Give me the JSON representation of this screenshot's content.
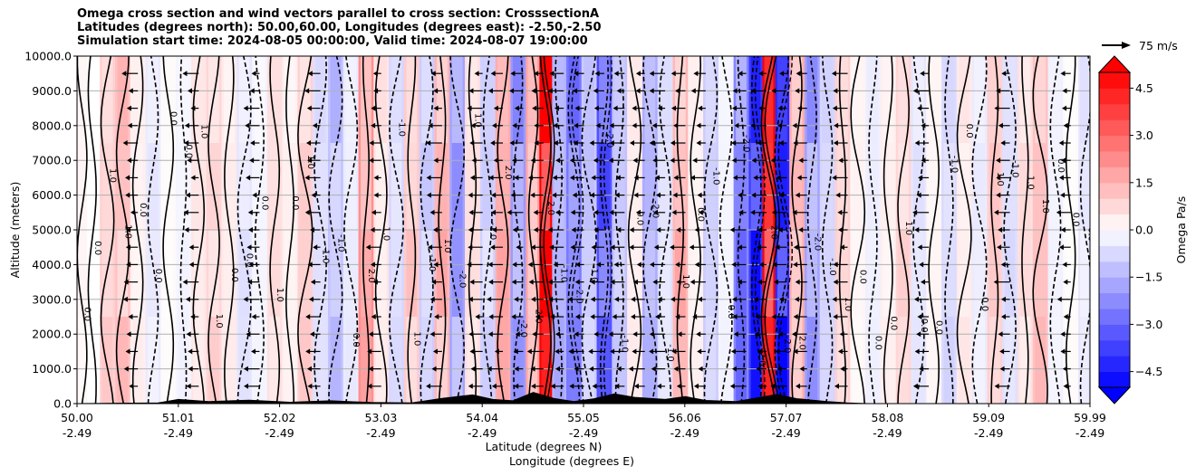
{
  "chart_data": {
    "type": "contour-cross-section",
    "title_lines": [
      "Omega cross section and wind vectors parallel to cross section: CrosssectionA",
      "Latitudes (degrees north): 50.00,60.00, Longitudes (degrees east): -2.50,-2.50",
      "Simulation start time: 2024-08-05 00:00:00, Valid time: 2024-08-07 19:00:00"
    ],
    "ylabel": "Altitude (meters)",
    "xlabel_lat": "Latitude (degrees N)",
    "xlabel_lon": "Longitude (degrees E)",
    "ylim": [
      0,
      10000
    ],
    "y_ticks": [
      {
        "value": 0,
        "label": "0.0"
      },
      {
        "value": 1000,
        "label": "1000.0"
      },
      {
        "value": 2000,
        "label": "2000.0"
      },
      {
        "value": 3000,
        "label": "3000.0"
      },
      {
        "value": 4000,
        "label": "4000.0"
      },
      {
        "value": 5000,
        "label": "5000.0"
      },
      {
        "value": 6000,
        "label": "6000.0"
      },
      {
        "value": 7000,
        "label": "7000.0"
      },
      {
        "value": 8000,
        "label": "8000.0"
      },
      {
        "value": 9000,
        "label": "9000.0"
      },
      {
        "value": 10000,
        "label": "10000.0"
      }
    ],
    "x_ticks": [
      {
        "lat": "50.00",
        "lon": "-2.49"
      },
      {
        "lat": "51.01",
        "lon": "-2.49"
      },
      {
        "lat": "52.02",
        "lon": "-2.49"
      },
      {
        "lat": "53.03",
        "lon": "-2.49"
      },
      {
        "lat": "54.04",
        "lon": "-2.49"
      },
      {
        "lat": "55.05",
        "lon": "-2.49"
      },
      {
        "lat": "56.06",
        "lon": "-2.49"
      },
      {
        "lat": "57.07",
        "lon": "-2.49"
      },
      {
        "lat": "58.08",
        "lon": "-2.49"
      },
      {
        "lat": "59.09",
        "lon": "-2.49"
      },
      {
        "lat": "59.99",
        "lon": "-2.49"
      }
    ],
    "grid": "horizontal",
    "colorbar": {
      "label": "Omega Pa/s",
      "range": [
        -5.0,
        5.0
      ],
      "extend": "both",
      "ticks": [
        "4.5",
        "3.0",
        "1.5",
        "0.0",
        "−1.5",
        "−3.0",
        "−4.5"
      ],
      "tick_values": [
        4.5,
        3.0,
        1.5,
        0.0,
        -1.5,
        -3.0,
        -4.5
      ],
      "colormap": "bwr"
    },
    "contour_levels": [
      -2.0,
      -1.0,
      0.0,
      1.0,
      2.0
    ],
    "vector_key": {
      "label": "75 m/s",
      "speed": 75
    },
    "columns": [
      {
        "lat": 50.05,
        "omega": 0.2
      },
      {
        "lat": 50.15,
        "omega": 0.0
      },
      {
        "lat": 50.3,
        "omega": 0.9
      },
      {
        "lat": 50.45,
        "omega": 1.2
      },
      {
        "lat": 50.6,
        "omega": 0.3
      },
      {
        "lat": 50.75,
        "omega": -0.4
      },
      {
        "lat": 50.9,
        "omega": 0.1
      },
      {
        "lat": 51.05,
        "omega": -0.2
      },
      {
        "lat": 51.2,
        "omega": 0.5
      },
      {
        "lat": 51.35,
        "omega": 0.8
      },
      {
        "lat": 51.5,
        "omega": 0.4
      },
      {
        "lat": 51.65,
        "omega": -0.5
      },
      {
        "lat": 51.8,
        "omega": -0.2
      },
      {
        "lat": 51.95,
        "omega": 0.6
      },
      {
        "lat": 52.1,
        "omega": 0.3
      },
      {
        "lat": 52.25,
        "omega": 0.9
      },
      {
        "lat": 52.4,
        "omega": -0.6
      },
      {
        "lat": 52.55,
        "omega": -1.2
      },
      {
        "lat": 52.7,
        "omega": -0.4
      },
      {
        "lat": 52.85,
        "omega": 2.2
      },
      {
        "lat": 53.0,
        "omega": 0.5
      },
      {
        "lat": 53.15,
        "omega": -0.8
      },
      {
        "lat": 53.3,
        "omega": 1.0
      },
      {
        "lat": 53.45,
        "omega": -1.0
      },
      {
        "lat": 53.6,
        "omega": 1.4
      },
      {
        "lat": 53.75,
        "omega": -1.8
      },
      {
        "lat": 53.9,
        "omega": 0.6
      },
      {
        "lat": 54.05,
        "omega": -0.9
      },
      {
        "lat": 54.2,
        "omega": 1.6
      },
      {
        "lat": 54.35,
        "omega": -2.0
      },
      {
        "lat": 54.5,
        "omega": 1.8
      },
      {
        "lat": 54.62,
        "omega": 5.2
      },
      {
        "lat": 54.75,
        "omega": -1.5
      },
      {
        "lat": 54.9,
        "omega": -2.6
      },
      {
        "lat": 55.05,
        "omega": -1.0
      },
      {
        "lat": 55.2,
        "omega": -3.4
      },
      {
        "lat": 55.35,
        "omega": -1.2
      },
      {
        "lat": 55.5,
        "omega": 0.4
      },
      {
        "lat": 55.65,
        "omega": -1.6
      },
      {
        "lat": 55.8,
        "omega": -0.6
      },
      {
        "lat": 55.95,
        "omega": 1.4
      },
      {
        "lat": 56.1,
        "omega": 0.3
      },
      {
        "lat": 56.25,
        "omega": -1.0
      },
      {
        "lat": 56.4,
        "omega": -0.2
      },
      {
        "lat": 56.55,
        "omega": -2.4
      },
      {
        "lat": 56.7,
        "omega": -3.8
      },
      {
        "lat": 56.82,
        "omega": 5.0
      },
      {
        "lat": 56.95,
        "omega": -4.2
      },
      {
        "lat": 57.1,
        "omega": 1.6
      },
      {
        "lat": 57.25,
        "omega": -1.8
      },
      {
        "lat": 57.4,
        "omega": -0.8
      },
      {
        "lat": 57.55,
        "omega": 0.9
      },
      {
        "lat": 57.7,
        "omega": 0.2
      },
      {
        "lat": 57.85,
        "omega": -0.3
      },
      {
        "lat": 58.0,
        "omega": 0.3
      },
      {
        "lat": 58.15,
        "omega": 0.8
      },
      {
        "lat": 58.3,
        "omega": -0.5
      },
      {
        "lat": 58.45,
        "omega": 0.2
      },
      {
        "lat": 58.6,
        "omega": -0.7
      },
      {
        "lat": 58.75,
        "omega": 0.4
      },
      {
        "lat": 58.9,
        "omega": -0.4
      },
      {
        "lat": 59.05,
        "omega": 0.9
      },
      {
        "lat": 59.2,
        "omega": -0.6
      },
      {
        "lat": 59.35,
        "omega": 0.6
      },
      {
        "lat": 59.5,
        "omega": 1.2
      },
      {
        "lat": 59.65,
        "omega": -0.3
      },
      {
        "lat": 59.8,
        "omega": 0.1
      },
      {
        "lat": 59.95,
        "omega": -0.5
      }
    ],
    "terrain": [
      {
        "lat": 50.0,
        "alt": 0
      },
      {
        "lat": 50.8,
        "alt": 20
      },
      {
        "lat": 51.0,
        "alt": 120
      },
      {
        "lat": 51.3,
        "alt": 60
      },
      {
        "lat": 51.7,
        "alt": 100
      },
      {
        "lat": 52.1,
        "alt": 40
      },
      {
        "lat": 52.5,
        "alt": 80
      },
      {
        "lat": 52.9,
        "alt": 30
      },
      {
        "lat": 53.3,
        "alt": 20
      },
      {
        "lat": 53.6,
        "alt": 150
      },
      {
        "lat": 53.9,
        "alt": 250
      },
      {
        "lat": 54.1,
        "alt": 120
      },
      {
        "lat": 54.3,
        "alt": 80
      },
      {
        "lat": 54.5,
        "alt": 320
      },
      {
        "lat": 54.7,
        "alt": 150
      },
      {
        "lat": 54.9,
        "alt": 60
      },
      {
        "lat": 55.1,
        "alt": 140
      },
      {
        "lat": 55.3,
        "alt": 280
      },
      {
        "lat": 55.5,
        "alt": 180
      },
      {
        "lat": 55.8,
        "alt": 120
      },
      {
        "lat": 56.0,
        "alt": 200
      },
      {
        "lat": 56.2,
        "alt": 90
      },
      {
        "lat": 56.5,
        "alt": 60
      },
      {
        "lat": 56.7,
        "alt": 160
      },
      {
        "lat": 56.9,
        "alt": 260
      },
      {
        "lat": 57.1,
        "alt": 140
      },
      {
        "lat": 57.4,
        "alt": 60
      },
      {
        "lat": 57.6,
        "alt": 20
      },
      {
        "lat": 57.8,
        "alt": 0
      },
      {
        "lat": 59.99,
        "alt": 0
      }
    ],
    "vector_rows_alt": [
      500,
      1000,
      1500,
      2000,
      2500,
      3000,
      3500,
      4000,
      4500,
      5000,
      5500,
      6000,
      6500,
      7000,
      7500,
      8000,
      8500,
      9000,
      9500
    ],
    "vector_columns_lat": [
      50.6,
      51.2,
      51.8,
      52.4,
      53.0,
      53.6,
      54.0,
      54.2,
      54.4,
      54.6,
      54.8,
      55.0,
      55.2,
      55.4,
      55.6,
      55.8,
      56.0,
      56.2,
      56.6,
      56.8,
      57.0,
      57.2,
      57.6,
      58.4,
      59.2,
      59.8
    ]
  }
}
